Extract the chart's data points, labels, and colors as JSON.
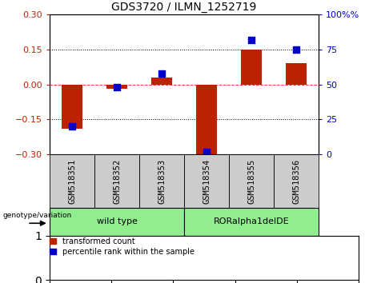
{
  "title": "GDS3720 / ILMN_1252719",
  "samples": [
    "GSM518351",
    "GSM518352",
    "GSM518353",
    "GSM518354",
    "GSM518355",
    "GSM518356"
  ],
  "transformed_count": [
    -0.19,
    -0.02,
    0.03,
    -0.3,
    0.15,
    0.09
  ],
  "percentile_rank": [
    20,
    48,
    58,
    2,
    82,
    75
  ],
  "group_wt_label": "wild type",
  "group_ror_label": "RORalpha1delDE",
  "group_color": "#90EE90",
  "group_border": "#000000",
  "ylim_left": [
    -0.3,
    0.3
  ],
  "ylim_right": [
    0,
    100
  ],
  "yticks_left": [
    -0.3,
    -0.15,
    0,
    0.15,
    0.3
  ],
  "yticks_right": [
    0,
    25,
    50,
    75,
    100
  ],
  "bar_color": "#BB2200",
  "dot_color": "#0000CC",
  "bar_width": 0.45,
  "dot_size": 40,
  "background_color": "#ffffff",
  "legend_red_label": "transformed count",
  "legend_blue_label": "percentile rank within the sample",
  "genotype_label": "genotype/variation",
  "sample_box_color": "#cccccc",
  "title_fontsize": 10,
  "tick_fontsize": 8,
  "label_fontsize": 7.5
}
